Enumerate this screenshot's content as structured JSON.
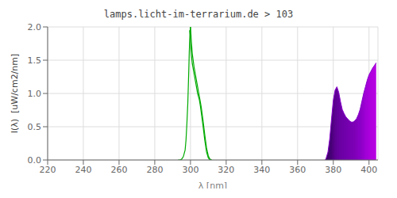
{
  "chart_data": {
    "type": "line",
    "title": "lamps.licht-im-terrarium.de > 103",
    "xlabel": "λ [nm]",
    "ylabel": "I(λ)  [uW/cm2/nm]",
    "xlim": [
      220,
      405
    ],
    "ylim": [
      0.0,
      2.0
    ],
    "xticks": [
      220,
      240,
      260,
      280,
      300,
      320,
      340,
      360,
      380,
      400
    ],
    "yticks": [
      {
        "value": 0.0,
        "label": "0.0"
      },
      0.5,
      {
        "value": 1.0,
        "label": "1.0"
      },
      1.5,
      {
        "value": 2.0,
        "label": "2.0"
      }
    ],
    "grid": true,
    "series": [
      {
        "color": "#00aa00",
        "x": [
          293.0,
          294.0,
          295.0,
          296.0,
          297.0,
          297.5,
          298.0,
          298.5,
          299.0,
          299.3,
          299.6,
          299.8,
          300.0
        ],
        "values": [
          0.0,
          0.0,
          0.01,
          0.05,
          0.15,
          0.3,
          0.55,
          0.85,
          1.3,
          1.6,
          1.82,
          1.93,
          2.0
        ]
      },
      {
        "color": "#00aa00",
        "x": [
          300.0,
          300.2,
          300.5,
          301.0,
          302.0,
          303.0,
          304.0,
          305.0,
          306.0,
          307.0,
          308.0,
          309.0,
          310.0,
          311.0,
          312.0
        ],
        "values": [
          2.0,
          1.92,
          1.78,
          1.6,
          1.4,
          1.25,
          1.1,
          0.95,
          0.8,
          0.6,
          0.38,
          0.18,
          0.06,
          0.01,
          0.0
        ]
      },
      {
        "color": "#00aa00",
        "x": [
          299.5,
          299.8,
          300.0,
          300.5,
          301.0,
          302.0,
          303.0,
          304.0,
          304.5,
          305.0,
          305.5,
          306.0,
          307.0,
          308.0,
          309.0,
          310.0,
          311.0
        ],
        "values": [
          1.95,
          1.88,
          1.75,
          1.58,
          1.45,
          1.3,
          1.15,
          1.0,
          0.95,
          0.9,
          0.82,
          0.72,
          0.52,
          0.3,
          0.12,
          0.03,
          0.0
        ]
      },
      {
        "type": "area",
        "color": "#8800cc",
        "colors": [
          "#3c0064",
          "#3e0069",
          "#41006e",
          "#460076",
          "#4e0080",
          "#58008c",
          "#5f0094",
          "#64009b",
          "#6900a2",
          "#6c00a5",
          "#6e00a8",
          "#7000aa",
          "#7300ac",
          "#7600af",
          "#7800b2",
          "#7a00b4",
          "#7d00b7",
          "#8000ba",
          "#8400be",
          "#8800c3",
          "#8e00c8",
          "#9400cd",
          "#9b00d2",
          "#a200d7",
          "#a800da",
          "#ac00dc",
          "#b000de",
          "#b400e0",
          "#b800e2"
        ],
        "x": [
          375.5,
          376.0,
          377.0,
          378.0,
          379.0,
          380.0,
          381.0,
          382.0,
          383.0,
          384.0,
          385.0,
          386.0,
          387.0,
          388.0,
          389.0,
          390.0,
          391.0,
          392.0,
          393.0,
          394.0,
          395.0,
          396.0,
          397.0,
          398.0,
          399.0,
          400.0,
          401.0,
          402.0,
          403.0,
          404.0
        ],
        "values": [
          0.0,
          0.03,
          0.12,
          0.32,
          0.62,
          0.9,
          1.05,
          1.1,
          1.02,
          0.88,
          0.76,
          0.7,
          0.65,
          0.62,
          0.59,
          0.57,
          0.57,
          0.59,
          0.62,
          0.68,
          0.76,
          0.88,
          1.0,
          1.1,
          1.2,
          1.28,
          1.33,
          1.38,
          1.42,
          1.46
        ]
      }
    ]
  }
}
